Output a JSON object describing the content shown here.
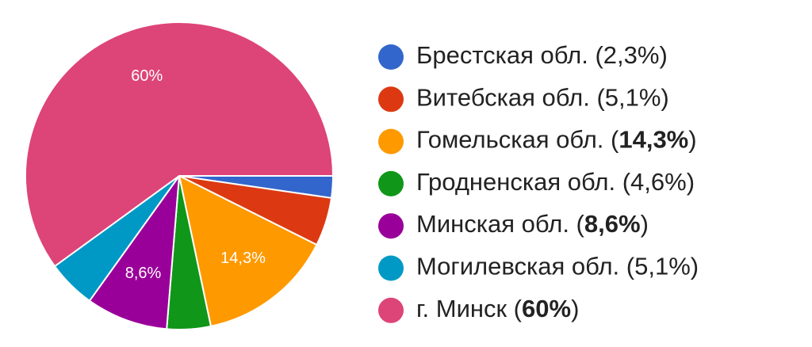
{
  "chart_data": {
    "type": "pie",
    "categories": [
      "Брестская обл. (2,3%)",
      "Витебская обл. (5,1%)",
      "Гомельская обл. (14,3%)",
      "Гродненская обл. (4,6%)",
      "Минская обл. (8,6%)",
      "Могилевская обл. (5,1%)",
      "г. Минск (60%)"
    ],
    "values": [
      2.3,
      5.1,
      14.3,
      4.6,
      8.6,
      5.1,
      60
    ],
    "value_labels": [
      null,
      null,
      "14,3%",
      null,
      "8,6%",
      null,
      "60%"
    ],
    "colors": [
      "#3366cc",
      "#dc3912",
      "#ff9900",
      "#109618",
      "#990099",
      "#0099c6",
      "#dd4477"
    ],
    "legend": "right"
  }
}
